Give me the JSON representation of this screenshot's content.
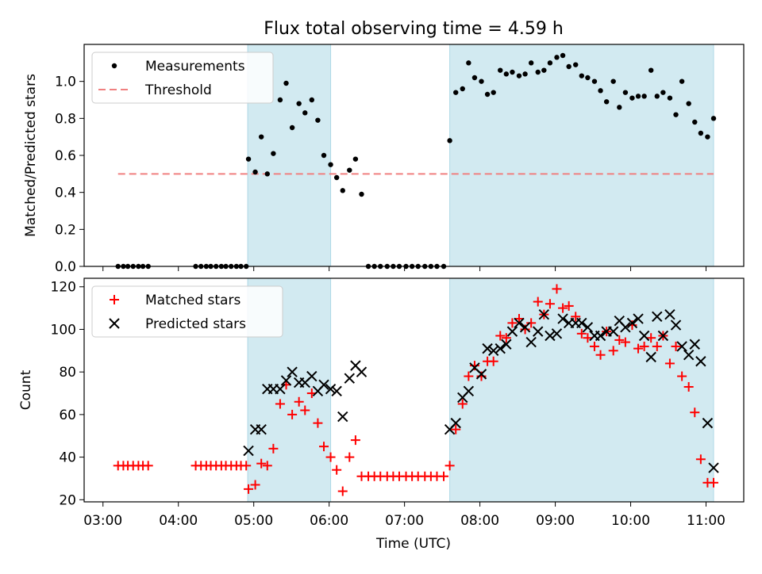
{
  "chart_data": {
    "type": "scatter",
    "title": "Flux total observing time = 4.59 h",
    "xlabel": "Time (UTC)",
    "x_tick_labels": [
      "03:00",
      "04:00",
      "05:00",
      "06:00",
      "07:00",
      "08:00",
      "09:00",
      "10:00",
      "11:00"
    ],
    "x_tick_hours": [
      3,
      4,
      5,
      6,
      7,
      8,
      9,
      10,
      11
    ],
    "xlim_hours": [
      2.75,
      11.5
    ],
    "shaded_intervals_hours": [
      [
        4.92,
        6.02
      ],
      [
        7.6,
        11.1
      ]
    ],
    "shade_color": "#add8e6",
    "panels": [
      {
        "name": "ratio",
        "ylabel": "Matched/Predicted stars",
        "ylim": [
          0,
          1.2
        ],
        "yticks": [
          0.0,
          0.2,
          0.4,
          0.6,
          0.8,
          1.0
        ],
        "ytick_labels": [
          "0.0",
          "0.2",
          "0.4",
          "0.6",
          "0.8",
          "1.0"
        ],
        "legend": [
          "Measurements",
          "Threshold"
        ],
        "threshold": {
          "value": 0.5,
          "x_range": [
            3.2,
            11.1
          ],
          "color": "#f08080"
        },
        "measurements": {
          "x": [
            3.2,
            3.27,
            3.33,
            3.4,
            3.47,
            3.53,
            3.6,
            4.23,
            4.3,
            4.37,
            4.43,
            4.5,
            4.57,
            4.63,
            4.7,
            4.77,
            4.83,
            4.9,
            4.93,
            5.02,
            5.1,
            5.18,
            5.26,
            5.35,
            5.43,
            5.51,
            5.6,
            5.68,
            5.77,
            5.85,
            5.93,
            6.02,
            6.1,
            6.18,
            6.27,
            6.35,
            6.43,
            6.52,
            6.6,
            6.68,
            6.77,
            6.85,
            6.93,
            7.02,
            7.1,
            7.18,
            7.27,
            7.35,
            7.43,
            7.52,
            7.6,
            7.68,
            7.77,
            7.85,
            7.93,
            8.02,
            8.1,
            8.18,
            8.27,
            8.35,
            8.43,
            8.52,
            8.6,
            8.68,
            8.77,
            8.85,
            8.93,
            9.02,
            9.1,
            9.18,
            9.27,
            9.35,
            9.43,
            9.52,
            9.6,
            9.68,
            9.77,
            9.85,
            9.93,
            10.02,
            10.1,
            10.18,
            10.27,
            10.35,
            10.43,
            10.52,
            10.6,
            10.68,
            10.77,
            10.85,
            10.93,
            11.02,
            11.1
          ],
          "y": [
            0,
            0,
            0,
            0,
            0,
            0,
            0,
            0,
            0,
            0,
            0,
            0,
            0,
            0,
            0,
            0,
            0,
            0,
            0.58,
            0.51,
            0.7,
            0.5,
            0.61,
            0.9,
            0.99,
            0.75,
            0.88,
            0.83,
            0.9,
            0.79,
            0.6,
            0.55,
            0.48,
            0.41,
            0.52,
            0.58,
            0.39,
            0,
            0,
            0,
            0,
            0,
            0,
            0,
            0,
            0,
            0,
            0,
            0,
            0,
            0.68,
            0.94,
            0.96,
            1.1,
            1.02,
            1.0,
            0.93,
            0.94,
            1.06,
            1.04,
            1.05,
            1.03,
            1.04,
            1.1,
            1.05,
            1.06,
            1.1,
            1.13,
            1.14,
            1.08,
            1.09,
            1.03,
            1.02,
            1.0,
            0.95,
            0.89,
            1.0,
            0.86,
            0.94,
            0.91,
            0.92,
            0.92,
            1.06,
            0.92,
            0.94,
            0.91,
            0.82,
            1.0,
            0.88,
            0.78,
            0.72,
            0.7,
            0.8
          ]
        }
      },
      {
        "name": "counts",
        "ylabel": "Count",
        "ylim": [
          19,
          124
        ],
        "yticks": [
          20,
          40,
          60,
          80,
          100,
          120
        ],
        "ytick_labels": [
          "20",
          "40",
          "60",
          "80",
          "100",
          "120"
        ],
        "legend": [
          "Matched stars",
          "Predicted stars"
        ],
        "series": [
          {
            "name": "Matched stars",
            "marker": "plus",
            "color": "#ff0000",
            "x": [
              3.2,
              3.27,
              3.33,
              3.4,
              3.47,
              3.53,
              3.6,
              4.23,
              4.3,
              4.37,
              4.43,
              4.5,
              4.57,
              4.63,
              4.7,
              4.77,
              4.83,
              4.9,
              4.93,
              5.02,
              5.1,
              5.18,
              5.26,
              5.35,
              5.43,
              5.51,
              5.6,
              5.68,
              5.77,
              5.85,
              5.93,
              6.02,
              6.1,
              6.18,
              6.27,
              6.35,
              6.43,
              6.52,
              6.6,
              6.68,
              6.77,
              6.85,
              6.93,
              7.02,
              7.1,
              7.18,
              7.27,
              7.35,
              7.43,
              7.52,
              7.6,
              7.68,
              7.77,
              7.85,
              7.93,
              8.02,
              8.1,
              8.18,
              8.27,
              8.35,
              8.43,
              8.52,
              8.6,
              8.68,
              8.77,
              8.85,
              8.93,
              9.02,
              9.1,
              9.18,
              9.27,
              9.35,
              9.43,
              9.52,
              9.6,
              9.68,
              9.77,
              9.85,
              9.93,
              10.02,
              10.1,
              10.18,
              10.27,
              10.35,
              10.43,
              10.52,
              10.6,
              10.68,
              10.77,
              10.85,
              10.93,
              11.02,
              11.1
            ],
            "y": [
              36,
              36,
              36,
              36,
              36,
              36,
              36,
              36,
              36,
              36,
              36,
              36,
              36,
              36,
              36,
              36,
              36,
              36,
              25,
              27,
              37,
              36,
              44,
              65,
              74,
              60,
              66,
              62,
              70,
              56,
              45,
              40,
              34,
              24,
              40,
              48,
              31,
              31,
              31,
              31,
              31,
              31,
              31,
              31,
              31,
              31,
              31,
              31,
              31,
              31,
              36,
              53,
              65,
              78,
              83,
              78,
              85,
              85,
              97,
              96,
              103,
              105,
              100,
              103,
              113,
              107,
              112,
              119,
              110,
              111,
              106,
              98,
              96,
              92,
              88,
              99,
              90,
              95,
              94,
              102,
              91,
              92,
              96,
              92,
              97,
              84,
              92,
              78,
              73,
              61,
              39,
              28,
              28
            ]
          },
          {
            "name": "Predicted stars",
            "marker": "x",
            "color": "#000000",
            "x": [
              4.93,
              5.02,
              5.1,
              5.18,
              5.26,
              5.35,
              5.43,
              5.51,
              5.6,
              5.68,
              5.77,
              5.85,
              5.93,
              6.02,
              6.1,
              6.18,
              6.27,
              6.35,
              6.43,
              7.6,
              7.68,
              7.77,
              7.85,
              7.93,
              8.02,
              8.1,
              8.18,
              8.27,
              8.35,
              8.43,
              8.52,
              8.6,
              8.68,
              8.77,
              8.85,
              8.93,
              9.02,
              9.1,
              9.18,
              9.27,
              9.35,
              9.43,
              9.52,
              9.6,
              9.68,
              9.77,
              9.85,
              9.93,
              10.02,
              10.1,
              10.18,
              10.27,
              10.35,
              10.43,
              10.52,
              10.6,
              10.68,
              10.77,
              10.85,
              10.93,
              11.02,
              11.1
            ],
            "y": [
              43,
              53,
              53,
              72,
              72,
              72,
              76,
              80,
              75,
              75,
              78,
              71,
              74,
              72,
              71,
              59,
              77,
              83,
              80,
              53,
              56,
              68,
              71,
              82,
              79,
              91,
              90,
              91,
              93,
              99,
              103,
              101,
              94,
              99,
              107,
              97,
              98,
              105,
              103,
              103,
              103,
              101,
              97,
              97,
              99,
              99,
              104,
              101,
              103,
              105,
              97,
              87,
              106,
              97,
              107,
              102,
              92,
              88,
              93,
              85,
              56,
              35
            ]
          }
        ]
      }
    ]
  }
}
